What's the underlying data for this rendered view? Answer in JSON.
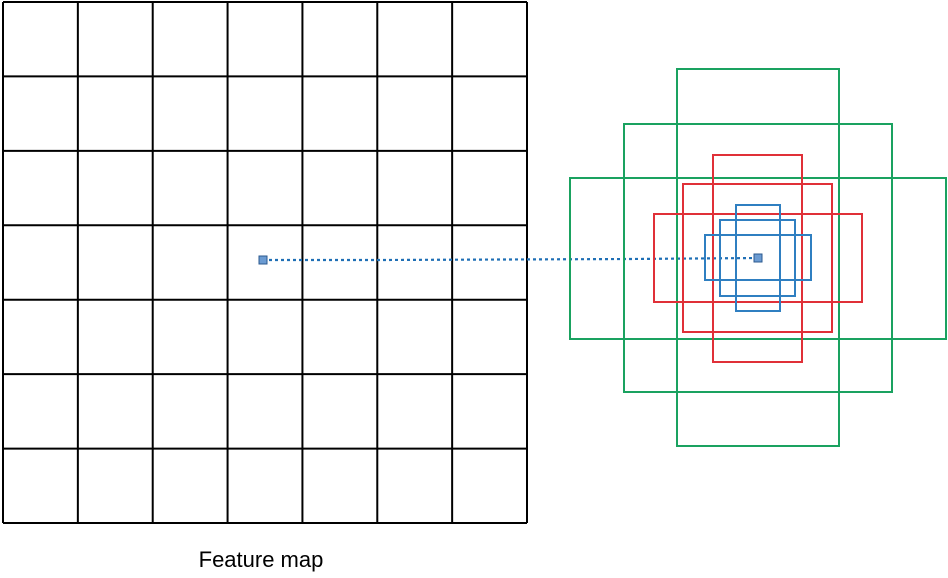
{
  "feature_map": {
    "caption": "Feature map",
    "rows": 7,
    "cols": 7,
    "line_color": "#000000"
  },
  "anchor_center_marker_color": "#6b9bd2",
  "connector_color": "#1f6fb5",
  "anchor_groups": [
    {
      "name": "large",
      "color": "#1aa260",
      "boxes": 3
    },
    {
      "name": "medium",
      "color": "#e03038",
      "boxes": 3
    },
    {
      "name": "small",
      "color": "#2f7fc1",
      "boxes": 3
    }
  ]
}
